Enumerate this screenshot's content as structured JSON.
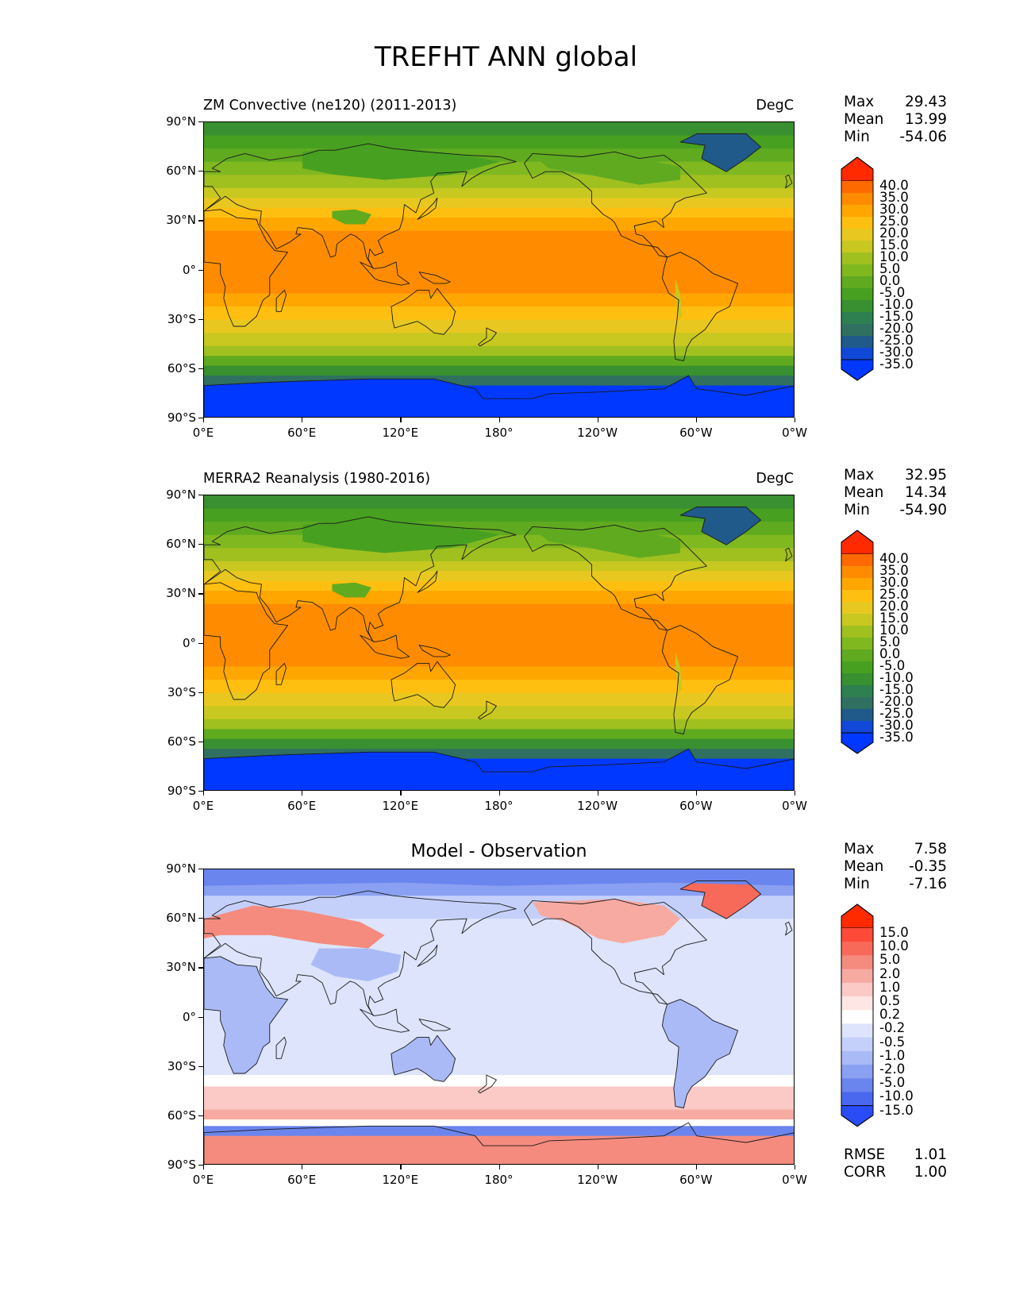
{
  "title": "TREFHT ANN global",
  "x_ticks": [
    "0°E",
    "60°E",
    "120°E",
    "180°",
    "120°W",
    "60°W",
    "0°W"
  ],
  "y_ticks": [
    "90°N",
    "60°N",
    "30°N",
    "0°",
    "30°S",
    "60°S",
    "90°S"
  ],
  "panels": [
    {
      "title_left": "ZM Convective (ne120) (2011-2013)",
      "title_center": "",
      "units": "DegC",
      "stats": [
        [
          "Max",
          "29.43"
        ],
        [
          "Mean",
          "13.99"
        ],
        [
          "Min",
          "-54.06"
        ]
      ],
      "colorbar_labels": [
        "40.0",
        "35.0",
        "30.0",
        "25.0",
        "20.0",
        "15.0",
        "10.0",
        "5.0",
        "0.0",
        "-5.0",
        "-10.0",
        "-15.0",
        "-20.0",
        "-25.0",
        "-30.0",
        "-35.0"
      ],
      "extra": []
    },
    {
      "title_left": "MERRA2 Reanalysis (1980-2016)",
      "title_center": "",
      "units": "DegC",
      "stats": [
        [
          "Max",
          "32.95"
        ],
        [
          "Mean",
          "14.34"
        ],
        [
          "Min",
          "-54.90"
        ]
      ],
      "colorbar_labels": [
        "40.0",
        "35.0",
        "30.0",
        "25.0",
        "20.0",
        "15.0",
        "10.0",
        "5.0",
        "0.0",
        "-5.0",
        "-10.0",
        "-15.0",
        "-20.0",
        "-25.0",
        "-30.0",
        "-35.0"
      ],
      "extra": []
    },
    {
      "title_left": "",
      "title_center": "Model - Observation",
      "units": "",
      "stats": [
        [
          "Max",
          "7.58"
        ],
        [
          "Mean",
          "-0.35"
        ],
        [
          "Min",
          "-7.16"
        ]
      ],
      "colorbar_labels": [
        "15.0",
        "10.0",
        "5.0",
        "2.0",
        "1.0",
        "0.5",
        "0.2",
        "-0.2",
        "-0.5",
        "-1.0",
        "-2.0",
        "-5.0",
        "-10.0",
        "-15.0"
      ],
      "extra": [
        [
          "RMSE",
          "1.01"
        ],
        [
          "CORR",
          "1.00"
        ]
      ]
    }
  ],
  "colors": {
    "abs_scale": [
      "#ff2a00",
      "#ff6a00",
      "#ff8c00",
      "#ffa600",
      "#ffbf10",
      "#e8c820",
      "#c8c820",
      "#a0c020",
      "#80b820",
      "#60aa20",
      "#48a020",
      "#389030",
      "#2e8050",
      "#307060",
      "#205a8a",
      "#1048d8",
      "#0038ff"
    ],
    "diff_scale": [
      "#ff2a00",
      "#ff4a3a",
      "#f76a5a",
      "#f58b7e",
      "#f7aaa2",
      "#fbcac6",
      "#fde6e4",
      "#ffffff",
      "#dde4fb",
      "#c5d0fa",
      "#aabaf7",
      "#8aa0f2",
      "#6a85ee",
      "#4a68ee",
      "#2a4cf7",
      "#0038ff"
    ]
  }
}
